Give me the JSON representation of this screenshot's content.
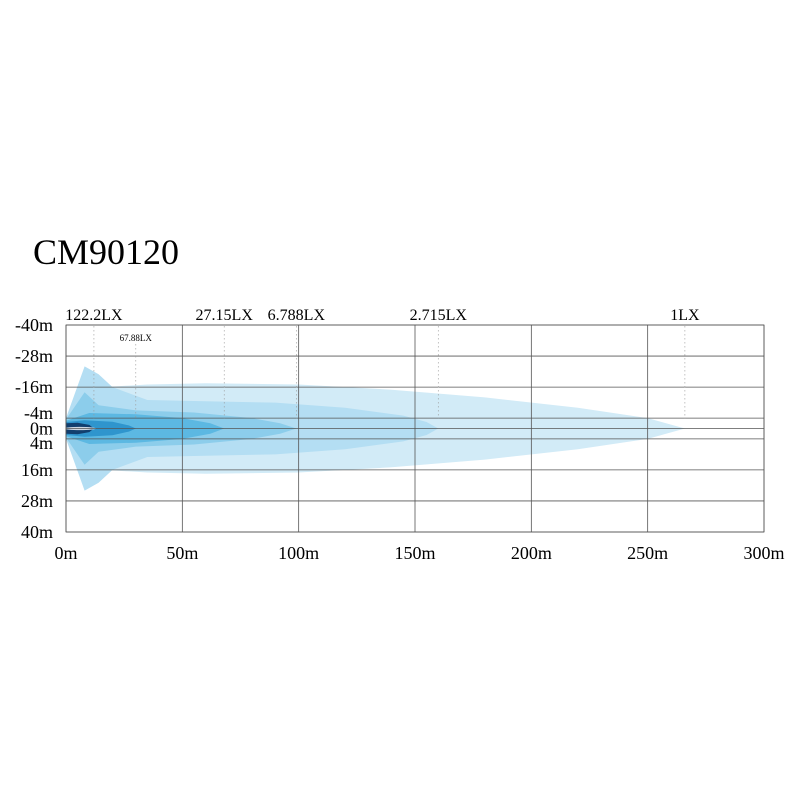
{
  "chart_data": {
    "type": "area",
    "title": "CM90120",
    "x_ticks": [
      0,
      50,
      100,
      150,
      200,
      250,
      300
    ],
    "x_tick_labels": [
      "0m",
      "50m",
      "100m",
      "150m",
      "200m",
      "250m",
      "300m"
    ],
    "y_ticks": [
      -40,
      -28,
      -16,
      -4,
      0,
      4,
      16,
      28,
      40
    ],
    "y_tick_labels": [
      "-40m",
      "-28m",
      "-16m",
      "-4m",
      "0m",
      "4m",
      "16m",
      "28m",
      "40m"
    ],
    "xlim": [
      0,
      300
    ],
    "ylim": [
      -40,
      40
    ],
    "grid": true,
    "colors": [
      "#d2ebf7",
      "#b4def3",
      "#8ccdeb",
      "#5cb8e2",
      "#2f95cd",
      "#123f6e"
    ],
    "series": [
      {
        "name": "1LX",
        "reach": 266,
        "points": [
          [
            0,
            -4
          ],
          [
            8,
            -13
          ],
          [
            16,
            -16
          ],
          [
            35,
            -17
          ],
          [
            60,
            -17.5
          ],
          [
            100,
            -17
          ],
          [
            140,
            -15
          ],
          [
            180,
            -12
          ],
          [
            220,
            -8
          ],
          [
            250,
            -4
          ],
          [
            266,
            0
          ],
          [
            250,
            4
          ],
          [
            220,
            8
          ],
          [
            180,
            12
          ],
          [
            140,
            15
          ],
          [
            100,
            17
          ],
          [
            60,
            17.5
          ],
          [
            35,
            17
          ],
          [
            16,
            16
          ],
          [
            8,
            13
          ],
          [
            0,
            4
          ]
        ]
      },
      {
        "name": "2.715LX",
        "reach": 160,
        "points": [
          [
            0,
            -4
          ],
          [
            8,
            -24
          ],
          [
            14,
            -21
          ],
          [
            20,
            -16
          ],
          [
            35,
            -11
          ],
          [
            60,
            -10.5
          ],
          [
            90,
            -10
          ],
          [
            120,
            -8
          ],
          [
            145,
            -5
          ],
          [
            155,
            -2.5
          ],
          [
            160,
            0
          ],
          [
            155,
            2.5
          ],
          [
            145,
            5
          ],
          [
            120,
            8
          ],
          [
            90,
            10
          ],
          [
            60,
            10.5
          ],
          [
            35,
            11
          ],
          [
            20,
            16
          ],
          [
            14,
            21
          ],
          [
            8,
            24
          ],
          [
            0,
            4
          ]
        ]
      },
      {
        "name": "6.788LX",
        "reach": 99,
        "points": [
          [
            0,
            -3.5
          ],
          [
            8,
            -14
          ],
          [
            14,
            -9
          ],
          [
            30,
            -7
          ],
          [
            55,
            -6.2
          ],
          [
            80,
            -4
          ],
          [
            92,
            -2
          ],
          [
            99,
            0
          ],
          [
            92,
            2
          ],
          [
            80,
            4
          ],
          [
            55,
            6.2
          ],
          [
            30,
            7
          ],
          [
            14,
            9
          ],
          [
            8,
            14
          ],
          [
            0,
            3.5
          ]
        ]
      },
      {
        "name": "27.15LX",
        "reach": 68,
        "points": [
          [
            0,
            -3
          ],
          [
            10,
            -6
          ],
          [
            30,
            -5.5
          ],
          [
            50,
            -4
          ],
          [
            62,
            -2
          ],
          [
            68,
            0
          ],
          [
            62,
            2
          ],
          [
            50,
            4
          ],
          [
            30,
            5.5
          ],
          [
            10,
            6
          ],
          [
            0,
            3
          ]
        ]
      },
      {
        "name": "67.88LX",
        "reach": 30,
        "points": [
          [
            0,
            -2.5
          ],
          [
            8,
            -3.2
          ],
          [
            20,
            -2.6
          ],
          [
            27,
            -1.2
          ],
          [
            30,
            0
          ],
          [
            27,
            1.2
          ],
          [
            20,
            2.6
          ],
          [
            8,
            3.2
          ],
          [
            0,
            2.5
          ]
        ]
      },
      {
        "name": "122.2LX",
        "reach": 12,
        "points": [
          [
            0,
            -2
          ],
          [
            5,
            -2.2
          ],
          [
            10,
            -1.4
          ],
          [
            12,
            0
          ],
          [
            10,
            1.4
          ],
          [
            5,
            2.2
          ],
          [
            0,
            2
          ]
        ]
      }
    ]
  }
}
